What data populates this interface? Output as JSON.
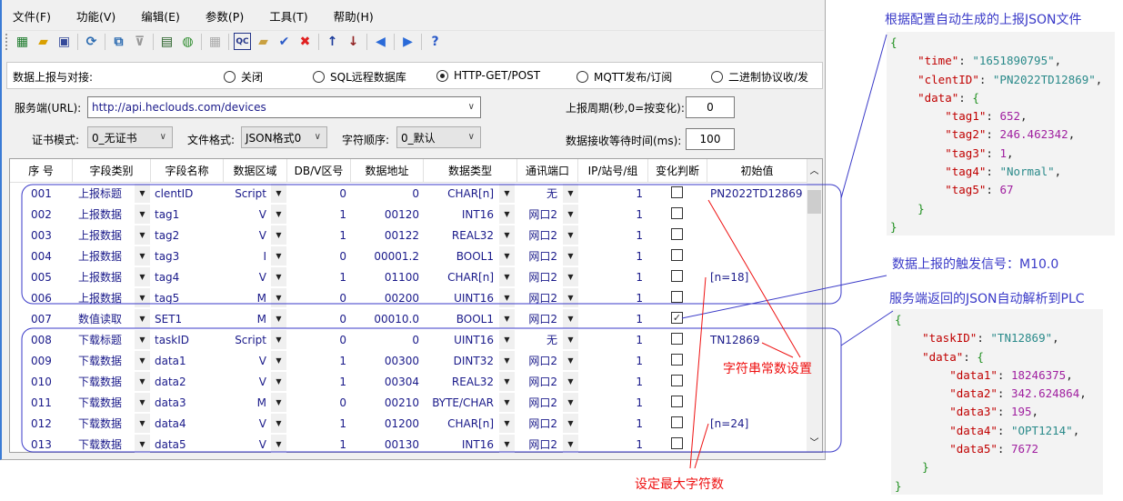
{
  "menu": [
    "文件(F)",
    "功能(V)",
    "编辑(E)",
    "参数(P)",
    "工具(T)",
    "帮助(H)"
  ],
  "toolbar": [
    [
      "network-icon",
      "▦",
      "#1a7a2a"
    ],
    [
      "open-folder-icon",
      "▰",
      "#d9a000"
    ],
    [
      "save-icon",
      "▣",
      "#34499a"
    ],
    "|",
    [
      "refresh-icon",
      "⟳",
      "#2a6ab0"
    ],
    "|",
    [
      "topology-icon",
      "⧉",
      "#2a6ab0"
    ],
    [
      "connector-icon",
      "⊽",
      "#999"
    ],
    "|",
    [
      "monitor-icon",
      "▤",
      "#1f5a1f"
    ],
    [
      "globe-icon",
      "◍",
      "#2a8a2a"
    ],
    "|",
    [
      "grid-icon",
      "▦",
      "#aaa"
    ],
    "|",
    [
      "qc-icon",
      "QC",
      "#223388"
    ],
    [
      "folder-add-icon",
      "▰",
      "#c9a040"
    ],
    [
      "check-icon",
      "✔",
      "#2a5ac8"
    ],
    [
      "delete-icon",
      "✖",
      "#e02020"
    ],
    "|",
    [
      "arrow-up-icon",
      "↑",
      "#1a3a9a"
    ],
    [
      "arrow-down-icon",
      "↓",
      "#902020"
    ],
    "|",
    [
      "prev-icon",
      "◀",
      "#2a6ad8"
    ],
    "|",
    [
      "next-icon",
      "▶",
      "#2a6ad8"
    ],
    "|",
    [
      "help-icon",
      "?",
      "#2a5ac8"
    ]
  ],
  "report": {
    "label": "数据上报与对接:",
    "options": [
      {
        "label": "关闭",
        "selected": false
      },
      {
        "label": "SQL远程数据库",
        "selected": false
      },
      {
        "label": "HTTP-GET/POST",
        "selected": true
      },
      {
        "label": "MQTT发布/订阅",
        "selected": false
      },
      {
        "label": "二进制协议收/发",
        "selected": false
      }
    ]
  },
  "server": {
    "label": "服务端(URL):",
    "value": "http://api.heclouds.com/devices"
  },
  "period": {
    "label": "上报周期(秒,0=按变化):",
    "value": "0"
  },
  "cert": {
    "label": "证书模式:",
    "value": "0_无证书"
  },
  "format": {
    "label": "文件格式:",
    "value": "JSON格式0"
  },
  "order": {
    "label": "字符顺序:",
    "value": "0_默认"
  },
  "wait": {
    "label": "数据接收等待时间(ms):",
    "value": "100"
  },
  "table": {
    "headers": [
      "序 号",
      "字段类别",
      "字段名称",
      "数据区域",
      "DB/V区号",
      "数据地址",
      "数据类型",
      "通讯端口",
      "IP/站号/组",
      "变化判断",
      "初始值"
    ],
    "rows": [
      [
        "001",
        "上报标题",
        "clentID",
        "Script",
        "0",
        "0",
        "CHAR[n]",
        "无",
        "1",
        false,
        "PN2022TD12869"
      ],
      [
        "002",
        "上报数据",
        "tag1",
        "V",
        "1",
        "00120",
        "INT16",
        "网口2",
        "1",
        false,
        ""
      ],
      [
        "003",
        "上报数据",
        "tag2",
        "V",
        "1",
        "00122",
        "REAL32",
        "网口2",
        "1",
        false,
        ""
      ],
      [
        "004",
        "上报数据",
        "tag3",
        "I",
        "0",
        "00001.2",
        "BOOL1",
        "网口2",
        "1",
        false,
        ""
      ],
      [
        "005",
        "上报数据",
        "tag4",
        "V",
        "1",
        "01100",
        "CHAR[n]",
        "网口2",
        "1",
        false,
        "[n=18]"
      ],
      [
        "006",
        "上报数据",
        "tag5",
        "M",
        "0",
        "00200",
        "UINT16",
        "网口2",
        "1",
        false,
        ""
      ],
      [
        "007",
        "数值读取",
        "SET1",
        "M",
        "0",
        "00010.0",
        "BOOL1",
        "网口2",
        "1",
        true,
        ""
      ],
      [
        "008",
        "下载标题",
        "taskID",
        "Script",
        "0",
        "0",
        "UINT16",
        "无",
        "1",
        false,
        "TN12869"
      ],
      [
        "009",
        "下载数据",
        "data1",
        "V",
        "1",
        "00300",
        "DINT32",
        "网口2",
        "1",
        false,
        ""
      ],
      [
        "010",
        "下载数据",
        "data2",
        "V",
        "1",
        "00304",
        "REAL32",
        "网口2",
        "1",
        false,
        ""
      ],
      [
        "011",
        "下载数据",
        "data3",
        "M",
        "0",
        "00210",
        "BYTE/CHAR",
        "网口2",
        "1",
        false,
        ""
      ],
      [
        "012",
        "下载数据",
        "data4",
        "V",
        "1",
        "01200",
        "CHAR[n]",
        "网口2",
        "1",
        false,
        "[n=24]"
      ],
      [
        "013",
        "下载数据",
        "data5",
        "V",
        "1",
        "00130",
        "INT16",
        "网口2",
        "1",
        false,
        ""
      ]
    ]
  },
  "annotations": {
    "upload_title": "根据配置自动生成的上报JSON文件",
    "trigger": "数据上报的触发信号：M10.0",
    "download_title": "服务端返回的JSON自动解析到PLC",
    "string_const": "字符串常数设置",
    "max_chars": "设定最大字符数"
  },
  "upload_json": [
    [
      [
        "b",
        "{"
      ]
    ],
    [
      [
        "p",
        "    "
      ],
      [
        "k",
        "\"time\""
      ],
      [
        "p",
        ": "
      ],
      [
        "s",
        "\"1651890795\""
      ],
      [
        "p",
        ","
      ]
    ],
    [
      [
        "p",
        "    "
      ],
      [
        "k",
        "\"clentID\""
      ],
      [
        "p",
        ": "
      ],
      [
        "s",
        "\"PN2022TD12869\""
      ],
      [
        "p",
        ","
      ]
    ],
    [
      [
        "p",
        "    "
      ],
      [
        "k",
        "\"data\""
      ],
      [
        "p",
        ": "
      ],
      [
        "b",
        "{"
      ]
    ],
    [
      [
        "p",
        "        "
      ],
      [
        "k",
        "\"tag1\""
      ],
      [
        "p",
        ": "
      ],
      [
        "n",
        "652"
      ],
      [
        "p",
        ","
      ]
    ],
    [
      [
        "p",
        "        "
      ],
      [
        "k",
        "\"tag2\""
      ],
      [
        "p",
        ": "
      ],
      [
        "n",
        "246.462342"
      ],
      [
        "p",
        ","
      ]
    ],
    [
      [
        "p",
        "        "
      ],
      [
        "k",
        "\"tag3\""
      ],
      [
        "p",
        ": "
      ],
      [
        "n",
        "1"
      ],
      [
        "p",
        ","
      ]
    ],
    [
      [
        "p",
        "        "
      ],
      [
        "k",
        "\"tag4\""
      ],
      [
        "p",
        ": "
      ],
      [
        "s",
        "\"Normal\""
      ],
      [
        "p",
        ","
      ]
    ],
    [
      [
        "p",
        "        "
      ],
      [
        "k",
        "\"tag5\""
      ],
      [
        "p",
        ": "
      ],
      [
        "n",
        "67"
      ]
    ],
    [
      [
        "p",
        "    "
      ],
      [
        "b",
        "}"
      ]
    ],
    [
      [
        "b",
        "}"
      ]
    ]
  ],
  "download_json": [
    [
      [
        "b",
        "{"
      ]
    ],
    [
      [
        "p",
        "    "
      ],
      [
        "k",
        "\"taskID\""
      ],
      [
        "p",
        ": "
      ],
      [
        "s",
        "\"TN12869\""
      ],
      [
        "p",
        ","
      ]
    ],
    [
      [
        "p",
        "    "
      ],
      [
        "k",
        "\"data\""
      ],
      [
        "p",
        ": "
      ],
      [
        "b",
        "{"
      ]
    ],
    [
      [
        "p",
        "        "
      ],
      [
        "k",
        "\"data1\""
      ],
      [
        "p",
        ": "
      ],
      [
        "n",
        "18246375"
      ],
      [
        "p",
        ","
      ]
    ],
    [
      [
        "p",
        "        "
      ],
      [
        "k",
        "\"data2\""
      ],
      [
        "p",
        ": "
      ],
      [
        "n",
        "342.624864"
      ],
      [
        "p",
        ","
      ]
    ],
    [
      [
        "p",
        "        "
      ],
      [
        "k",
        "\"data3\""
      ],
      [
        "p",
        ": "
      ],
      [
        "n",
        "195"
      ],
      [
        "p",
        ","
      ]
    ],
    [
      [
        "p",
        "        "
      ],
      [
        "k",
        "\"data4\""
      ],
      [
        "p",
        ": "
      ],
      [
        "s",
        "\"OPT1214\""
      ],
      [
        "p",
        ","
      ]
    ],
    [
      [
        "p",
        "        "
      ],
      [
        "k",
        "\"data5\""
      ],
      [
        "p",
        ": "
      ],
      [
        "n",
        "7672"
      ]
    ],
    [
      [
        "p",
        "    "
      ],
      [
        "b",
        "}"
      ]
    ],
    [
      [
        "b",
        "}"
      ]
    ]
  ]
}
